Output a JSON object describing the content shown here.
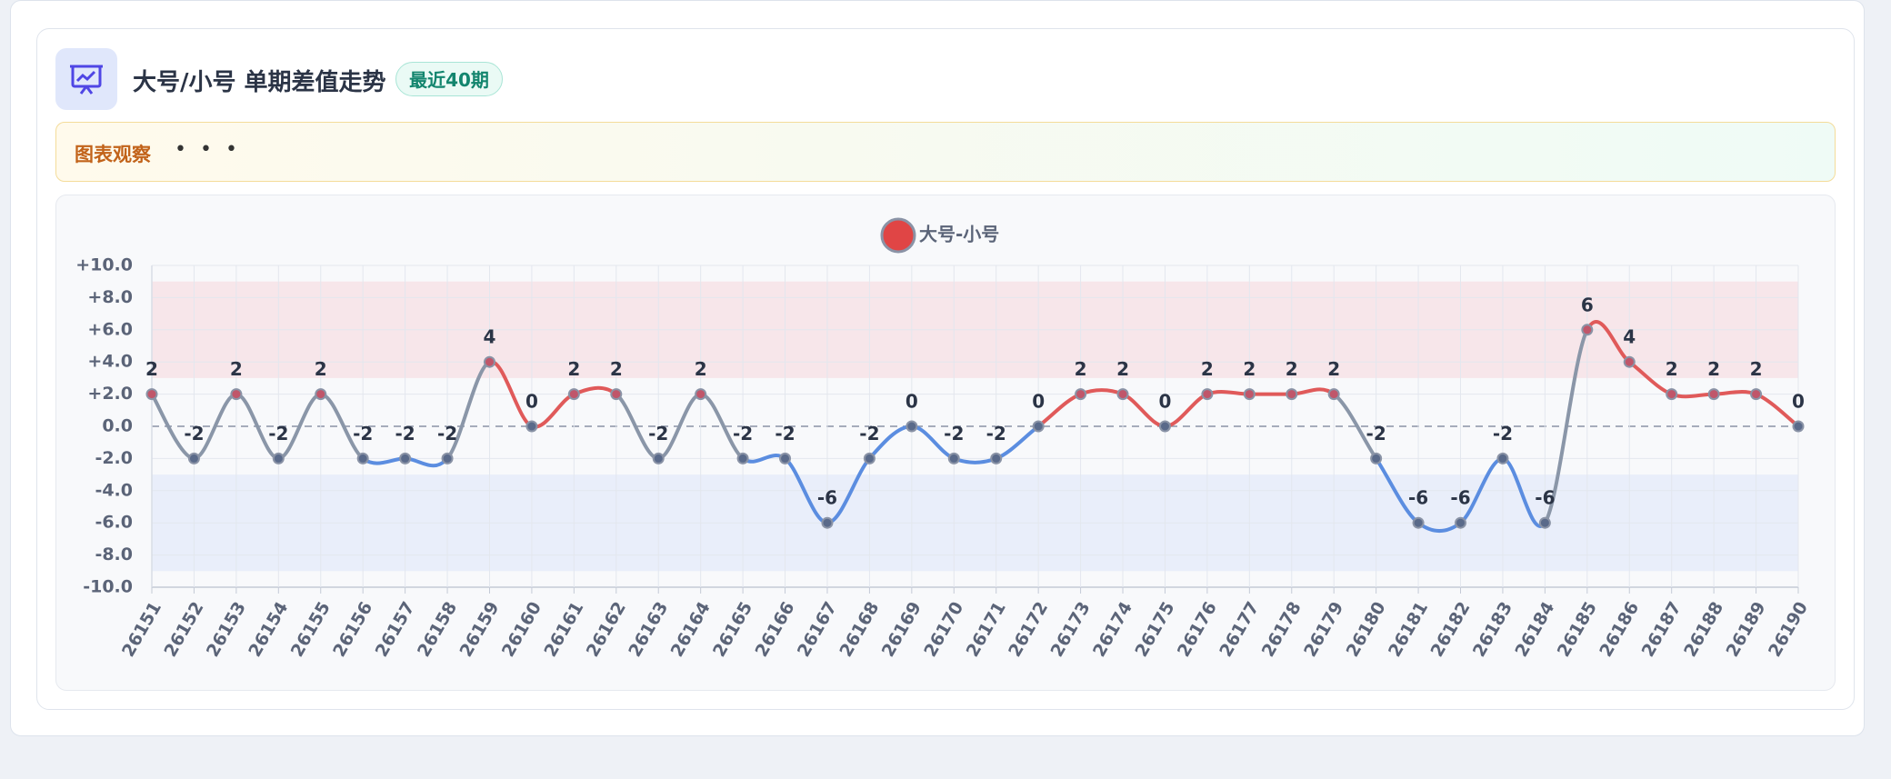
{
  "header": {
    "title": "大号/小号 单期差值走势",
    "badge": "最近40期"
  },
  "observation": {
    "label": "图表观察",
    "text": "• • •"
  },
  "chart_data": {
    "type": "line",
    "categories": [
      "26151",
      "26152",
      "26153",
      "26154",
      "26155",
      "26156",
      "26157",
      "26158",
      "26159",
      "26160",
      "26161",
      "26162",
      "26163",
      "26164",
      "26165",
      "26166",
      "26167",
      "26168",
      "26169",
      "26170",
      "26171",
      "26172",
      "26173",
      "26174",
      "26175",
      "26176",
      "26177",
      "26178",
      "26179",
      "26180",
      "26181",
      "26182",
      "26183",
      "26184",
      "26185",
      "26186",
      "26187",
      "26188",
      "26189",
      "26190"
    ],
    "series": [
      {
        "name": "大号-小号",
        "color": "#e04545",
        "values": [
          2,
          -2,
          2,
          -2,
          2,
          -2,
          -2,
          -2,
          4,
          0,
          2,
          2,
          -2,
          2,
          -2,
          -2,
          -6,
          -2,
          0,
          -2,
          -2,
          0,
          2,
          2,
          0,
          2,
          2,
          2,
          2,
          -2,
          -6,
          -6,
          -2,
          -6,
          6,
          4,
          2,
          2,
          2,
          0
        ]
      }
    ],
    "up_color": "#e05a5a",
    "down_color": "#5b8de0",
    "cross_color": "#8a96a8",
    "bands": [
      {
        "from": 3,
        "to": 9,
        "color": "#f7e3e6"
      },
      {
        "from": -3,
        "to": -9,
        "color": "#e6ecf9"
      }
    ],
    "ylim": [
      -10,
      10
    ],
    "yticks": [
      {
        "value": -10,
        "label": "-10.0"
      },
      {
        "value": -8,
        "label": "-8.0"
      },
      {
        "value": -6,
        "label": "-6.0"
      },
      {
        "value": -4,
        "label": "-4.0"
      },
      {
        "value": -2,
        "label": "-2.0"
      },
      {
        "value": 0,
        "label": "0.0"
      },
      {
        "value": 2,
        "label": "+2.0"
      },
      {
        "value": 4,
        "label": "+4.0"
      },
      {
        "value": 6,
        "label": "+6.0"
      },
      {
        "value": 8,
        "label": "+8.0"
      },
      {
        "value": 10,
        "label": "+10.0"
      }
    ],
    "grid": true,
    "legend": "top"
  }
}
